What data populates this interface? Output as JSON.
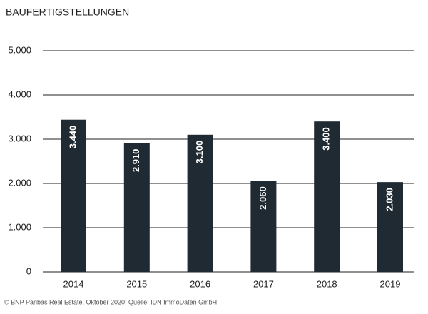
{
  "chart_data": {
    "type": "bar",
    "title": "BAUFERTIGSTELLUNGEN",
    "categories": [
      "2014",
      "2015",
      "2016",
      "2017",
      "2018",
      "2019"
    ],
    "values": [
      3440,
      2910,
      3100,
      2060,
      3400,
      2030
    ],
    "value_labels": [
      "3.440",
      "2.910",
      "3.100",
      "2.060",
      "3.400",
      "2.030"
    ],
    "color": "#1f2a33",
    "ylim": [
      0,
      5000
    ],
    "yticks": [
      0,
      {
        "value": 1000,
        "label": "1.000"
      },
      {
        "value": 2000,
        "label": "2.000"
      },
      {
        "value": 3000,
        "label": "3.000"
      },
      {
        "value": 4000,
        "label": "4.000"
      },
      {
        "value": 5000,
        "label": "5.000"
      }
    ],
    "grid": true,
    "source": "© BNP Paribas Real Estate, Oktober 2020; Quelle: IDN ImmoDaten GmbH"
  }
}
